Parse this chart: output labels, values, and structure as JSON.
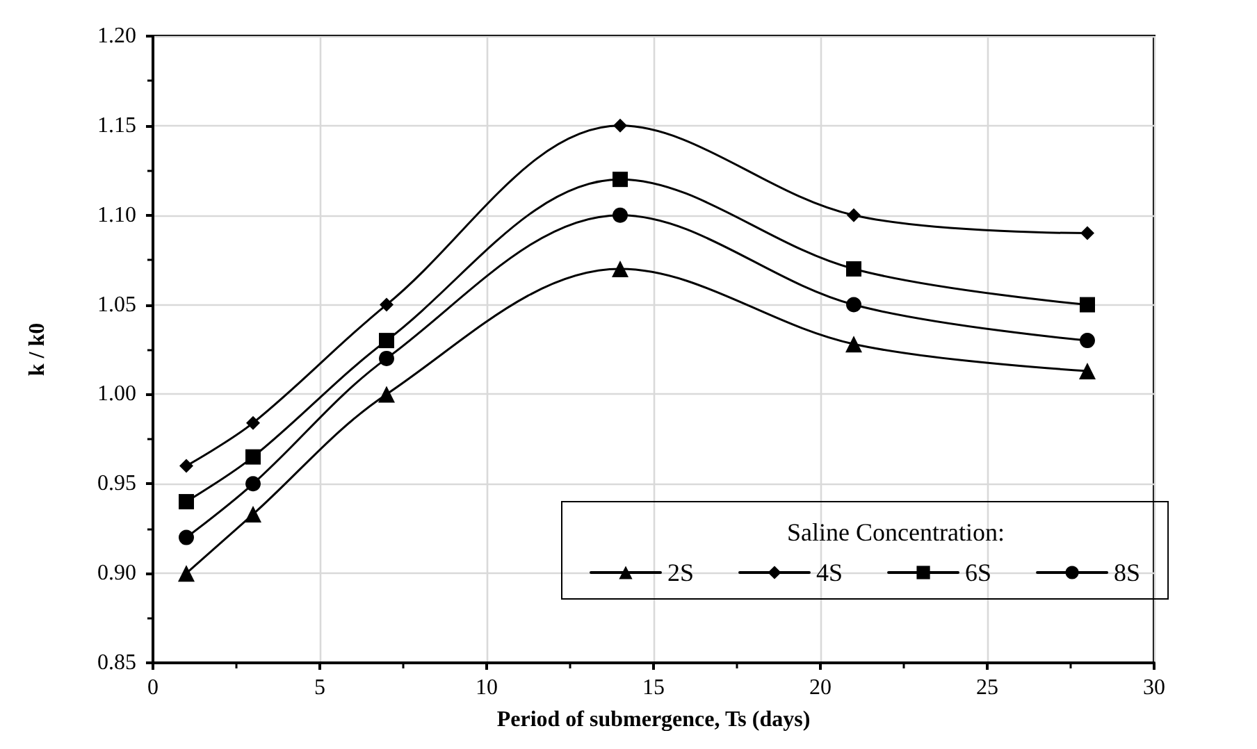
{
  "chart_data": {
    "type": "line",
    "xlabel": "Period of submergence, Ts (days)",
    "ylabel": "k / k0",
    "legend_title": "Saline Concentration:",
    "x": [
      1,
      3,
      7,
      14,
      21,
      28
    ],
    "series": [
      {
        "name": "2S",
        "color": "#000000",
        "marker": "triangle",
        "values": [
          0.9,
          0.933,
          1.0,
          1.07,
          1.028,
          1.013
        ]
      },
      {
        "name": "4S",
        "color": "#000000",
        "marker": "diamond",
        "values": [
          0.96,
          0.984,
          1.05,
          1.15,
          1.1,
          1.09
        ]
      },
      {
        "name": "6S",
        "color": "#000000",
        "marker": "square",
        "values": [
          0.94,
          0.965,
          1.03,
          1.12,
          1.07,
          1.05
        ]
      },
      {
        "name": "8S",
        "color": "#000000",
        "marker": "circle",
        "values": [
          0.92,
          0.95,
          1.02,
          1.1,
          1.05,
          1.03
        ]
      }
    ],
    "xlim": [
      0,
      30
    ],
    "xticks": [
      0,
      5,
      10,
      15,
      20,
      25,
      30
    ],
    "ylim": [
      0.85,
      1.2
    ],
    "yticks": [
      {
        "value": 0.85,
        "label": "0.85"
      },
      {
        "value": 0.9,
        "label": "0.90"
      },
      {
        "value": 0.95,
        "label": "0.95"
      },
      {
        "value": 1.0,
        "label": "1.00"
      },
      {
        "value": 1.05,
        "label": "1.05"
      },
      {
        "value": 1.1,
        "label": "1.10"
      },
      {
        "value": 1.15,
        "label": "1.15"
      },
      {
        "value": 1.2,
        "label": "1.20"
      }
    ],
    "grid": true,
    "legend": "bottom right",
    "line_style": "solid"
  }
}
